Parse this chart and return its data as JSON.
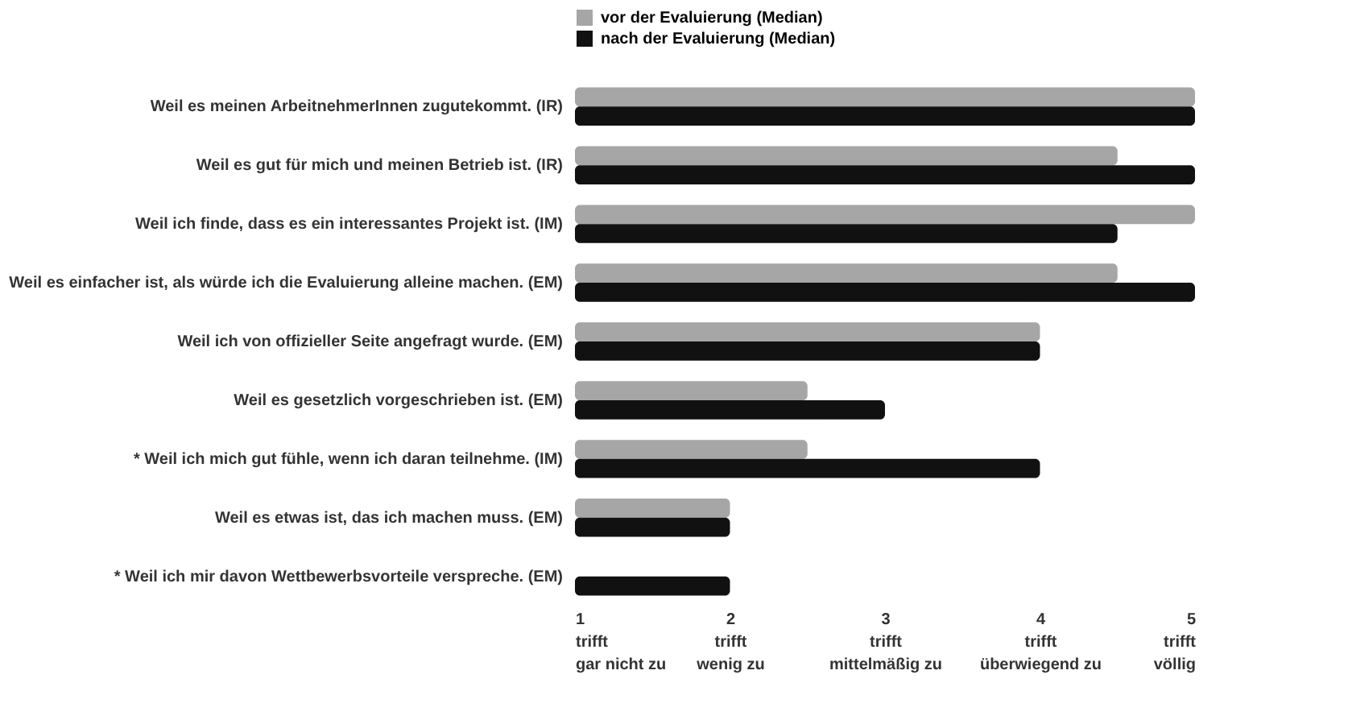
{
  "chart_data": {
    "type": "bar",
    "orientation": "horizontal",
    "categories": [
      "Weil es meinen ArbeitnehmerInnen zugutekommt. (IR)",
      "Weil es gut für mich und meinen Betrieb ist. (IR)",
      "Weil ich finde, dass es ein interessantes Projekt ist. (IM)",
      "Weil es einfacher ist, als würde ich die Evaluierung alleine machen. (EM)",
      "Weil ich von offizieller Seite angefragt wurde. (EM)",
      "Weil es gesetzlich vorgeschrieben ist. (EM)",
      "* Weil ich mich gut fühle, wenn ich daran teilnehme. (IM)",
      "Weil es etwas ist, das ich machen muss. (EM)",
      "* Weil ich mir davon Wettbewerbsvorteile verspreche. (EM)"
    ],
    "series": [
      {
        "name": "vor der Evaluierung (Median)",
        "color": "#a6a6a6",
        "values": [
          5,
          4.5,
          5,
          4.5,
          4,
          2.5,
          2.5,
          2,
          null
        ]
      },
      {
        "name": "nach der Evaluierung (Median)",
        "color": "#111111",
        "values": [
          5,
          5,
          4.5,
          5,
          4,
          3,
          4,
          2,
          2
        ]
      }
    ],
    "xlim": [
      1,
      5
    ],
    "xticks": [
      {
        "value": 1,
        "label": "1\ntrifft\ngar nicht zu"
      },
      {
        "value": 2,
        "label": "2\ntrifft\nwenig zu"
      },
      {
        "value": 3,
        "label": "3\ntrifft\nmittelmäßig zu"
      },
      {
        "value": 4,
        "label": "4\ntrifft\nüberwiegend zu"
      },
      {
        "value": 5,
        "label": "5\ntrifft\nvöllig"
      }
    ],
    "legend": "top",
    "grid": false
  }
}
